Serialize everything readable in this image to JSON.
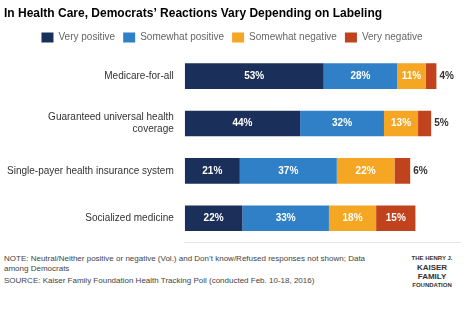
{
  "chart_data": {
    "type": "bar",
    "orientation": "horizontal",
    "stacked": true,
    "title": "In Health Care, Democrats’ Reactions Vary Depending on Labeling",
    "categories": [
      "Medicare-for-all",
      "Guaranteed universal health\ncoverage",
      "Single-payer health insurance system",
      "Socialized medicine"
    ],
    "series": [
      {
        "name": "Very positive",
        "color": "#1a2f5a",
        "values": [
          53,
          44,
          21,
          22
        ],
        "value_labels": [
          "53%",
          "44%",
          "21%",
          "22%"
        ]
      },
      {
        "name": "Somewhat positive",
        "color": "#3080c8",
        "values": [
          28,
          32,
          37,
          33
        ],
        "value_labels": [
          "28%",
          "32%",
          "37%",
          "33%"
        ]
      },
      {
        "name": "Somewhat negative",
        "color": "#f5a623",
        "values": [
          11,
          13,
          22,
          18
        ],
        "value_labels": [
          "11%",
          "13%",
          "22%",
          "18%"
        ]
      },
      {
        "name": "Very negative",
        "color": "#c0431e",
        "values": [
          4,
          5,
          6,
          15
        ],
        "value_labels": [
          "4%",
          "5%",
          "6%",
          "15%"
        ]
      }
    ],
    "xlim": [
      0,
      105
    ],
    "data_labels": true,
    "tick_labels": "y",
    "grid": false,
    "legend": "top",
    "annotations": [
      "NOTE: Neutral/Neither positive or negative (Vol.) and Don’t know/Refused responses not shown; Data among Democrats",
      "SOURCE: Kaiser Family Foundation Health Tracking Poll (conducted Feb. 10-18, 2016)",
      "THE HENRY J.",
      "KAISER",
      "FAMILY",
      "FOUNDATION"
    ]
  }
}
